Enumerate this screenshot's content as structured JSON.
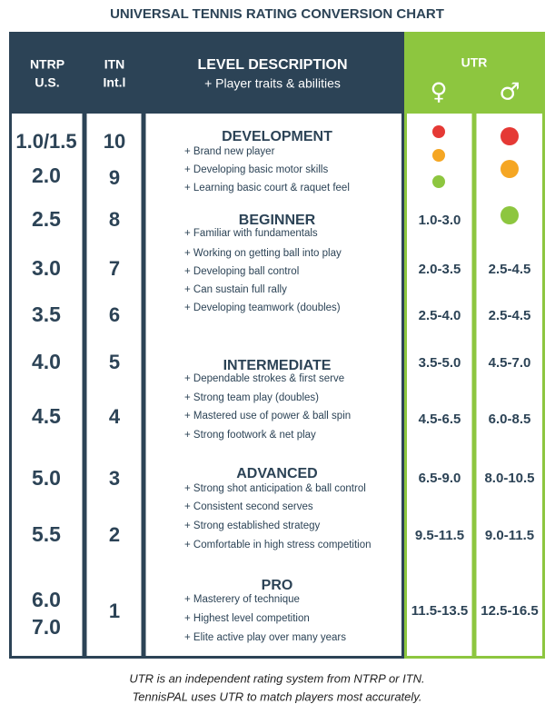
{
  "title": "UNIVERSAL TENNIS RATING CONVERSION CHART",
  "header": {
    "ntrp": [
      "NTRP",
      "U.S."
    ],
    "itn": [
      "ITN",
      "Int.l"
    ],
    "level": "LEVEL DESCRIPTION",
    "level_sub": "+ Player traits & abilities",
    "utr": "UTR",
    "female": "♀",
    "male": "♂"
  },
  "ntrp": [
    "1.0/1.5",
    "2.0",
    "2.5",
    "3.0",
    "3.5",
    "4.0",
    "4.5",
    "5.0",
    "5.5",
    "6.0",
    "7.0"
  ],
  "itn": [
    "10",
    "9",
    "8",
    "7",
    "6",
    "5",
    "4",
    "3",
    "2",
    "1"
  ],
  "levels": [
    {
      "name": "DEVELOPMENT",
      "traits": [
        "+ Brand new player",
        "+ Developing basic motor skills",
        "+ Learning basic court & raquet feel"
      ]
    },
    {
      "name": "BEGINNER",
      "traits": [
        "+ Familiar with fundamentals",
        "+ Working on getting ball into play",
        "+ Developing ball control",
        "+ Can sustain full rally",
        "+ Developing teamwork (doubles)"
      ]
    },
    {
      "name": "INTERMEDIATE",
      "traits": [
        "+ Dependable strokes & first serve",
        "+ Strong team play (doubles)",
        "+ Mastered use of power & ball spin",
        "+ Strong footwork & net play"
      ]
    },
    {
      "name": "ADVANCED",
      "traits": [
        "+ Strong shot anticipation & ball control",
        "+ Consistent second serves",
        "+ Strong established strategy",
        "+ Comfortable in high stress competition"
      ]
    },
    {
      "name": "PRO",
      "traits": [
        "+ Masterery of technique",
        "+ Highest level competition",
        "+ Elite active play over many years"
      ]
    }
  ],
  "utr_female": [
    "1.0-3.0",
    "2.0-3.5",
    "2.5-4.0",
    "3.5-5.0",
    "4.5-6.5",
    "6.5-9.0",
    "9.5-11.5",
    "11.5-13.5"
  ],
  "utr_male": [
    "2.5-4.5",
    "2.5-4.5",
    "4.5-7.0",
    "6.0-8.5",
    "8.0-10.5",
    "9.0-11.5",
    "12.5-16.5"
  ],
  "footer": [
    "UTR is an independent rating system from NTRP or ITN.",
    "TennisPAL uses UTR to match players most accurately."
  ]
}
